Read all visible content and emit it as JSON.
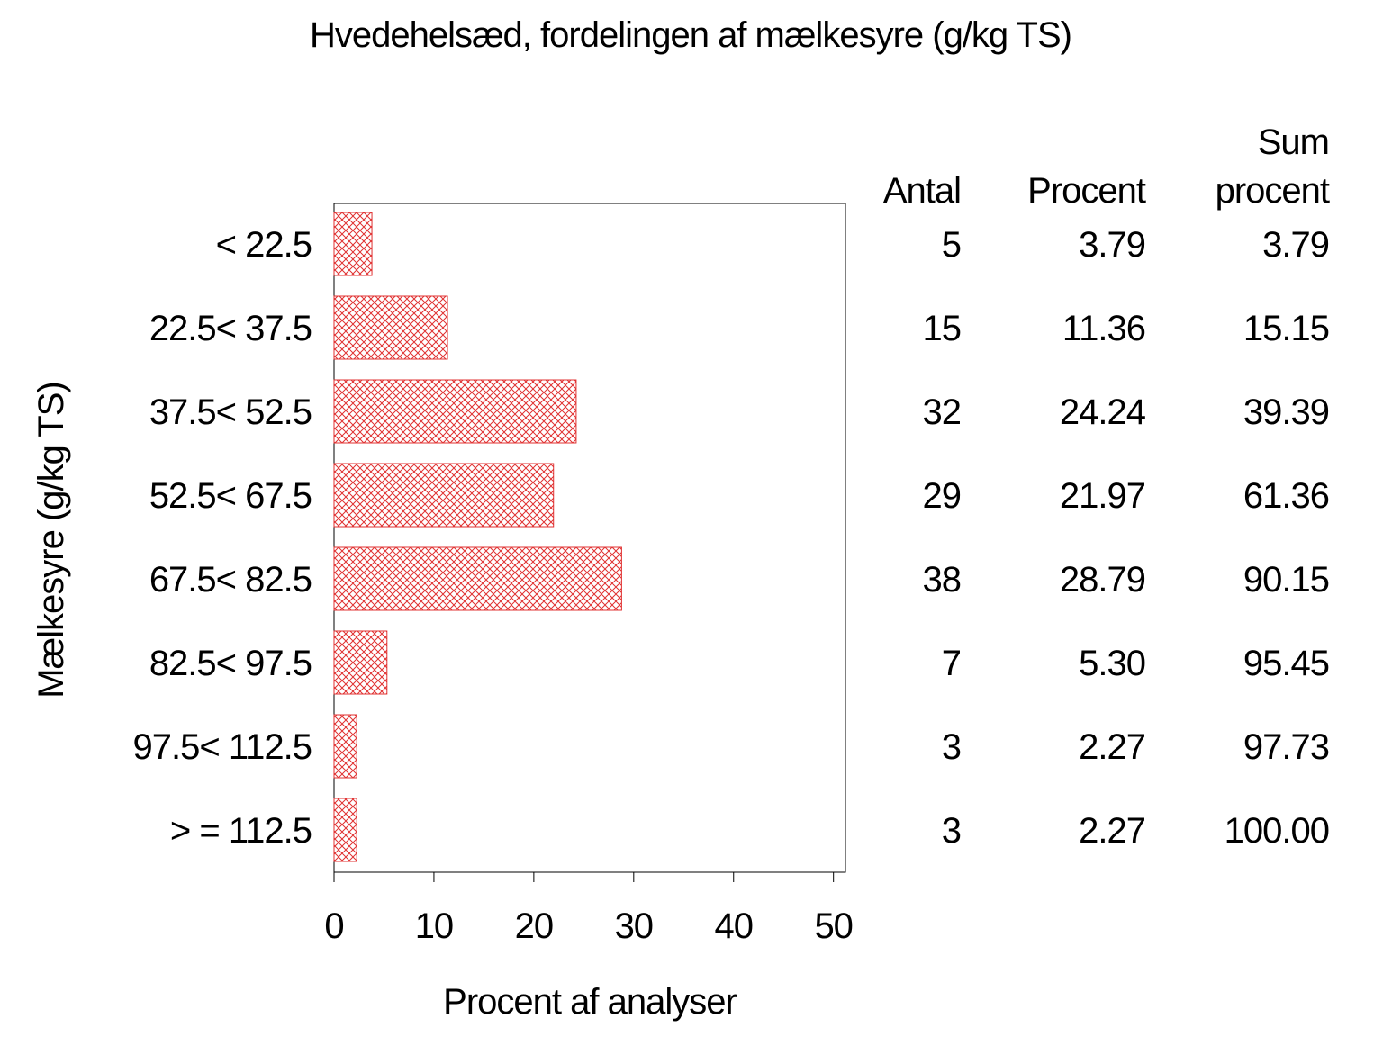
{
  "chart_data": {
    "type": "bar",
    "orientation": "horizontal",
    "title": "Hvedehelsæd, fordelingen af mælkesyre (g/kg TS)",
    "x_label": "Procent af analyser",
    "y_label": "Mælkesyre (g/kg TS)",
    "categories": [
      "< 22.5",
      "22.5< 37.5",
      "37.5< 52.5",
      "52.5< 67.5",
      "67.5< 82.5",
      "82.5< 97.5",
      "97.5< 112.5",
      "> = 112.5"
    ],
    "values": [
      3.79,
      11.36,
      24.24,
      21.97,
      28.79,
      5.3,
      2.27,
      2.27
    ],
    "value_labels": [
      "3.79",
      "11.36",
      "24.24",
      "21.97",
      "28.79",
      "5.30",
      "2.27",
      "2.27"
    ],
    "counts": [
      5,
      15,
      32,
      29,
      38,
      7,
      3,
      3
    ],
    "cumulative": [
      "3.79",
      "15.15",
      "39.39",
      "61.36",
      "90.15",
      "95.45",
      "97.73",
      "100.00"
    ],
    "table_headers": [
      [
        "Antal"
      ],
      [
        "Procent"
      ],
      [
        "Sum",
        "procent"
      ]
    ],
    "color": "#e03030",
    "xlim": [
      0,
      51.2
    ],
    "xticks": [
      0,
      10,
      20,
      30,
      40,
      50
    ]
  }
}
